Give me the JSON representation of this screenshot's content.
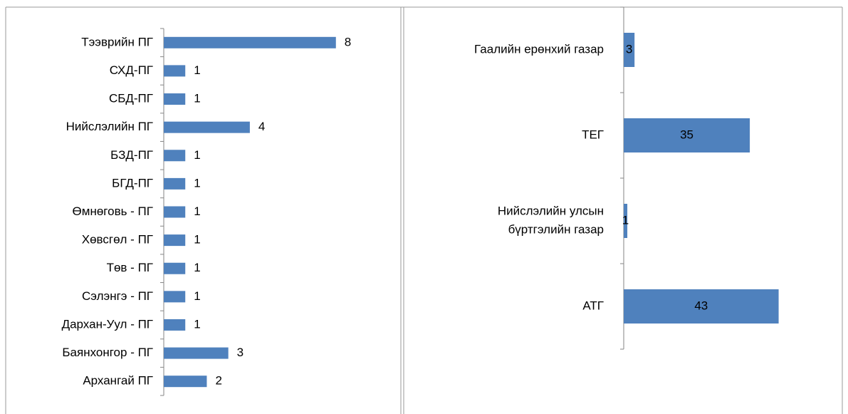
{
  "chart_data": [
    {
      "type": "barh",
      "categories": [
        "Тээврийн ПГ",
        "СХД-ПГ",
        "СБД-ПГ",
        "Нийслэлийн ПГ",
        "БЗД-ПГ",
        "БГД-ПГ",
        "Өмнөговь - ПГ",
        "Хөвсгөл - ПГ",
        "Төв - ПГ",
        "Сэлэнгэ - ПГ",
        "Дархан-Уул - ПГ",
        "Баянхонгор - ПГ",
        "Архангай ПГ"
      ],
      "values": [
        8,
        1,
        1,
        4,
        1,
        1,
        1,
        1,
        1,
        1,
        1,
        3,
        2
      ],
      "color": "#4f81bd",
      "xlim": [
        0,
        9
      ],
      "label_position": "outside"
    },
    {
      "type": "barh",
      "categories": [
        "Гаалийн ерөнхий газар",
        "ТЕГ",
        [
          "Нийслэлийн улсын",
          "бүртгэлийн газар"
        ],
        "АТГ"
      ],
      "values": [
        3,
        35,
        1,
        43
      ],
      "color": "#4f81bd",
      "xlim": [
        0,
        50
      ],
      "label_position": "center"
    }
  ]
}
